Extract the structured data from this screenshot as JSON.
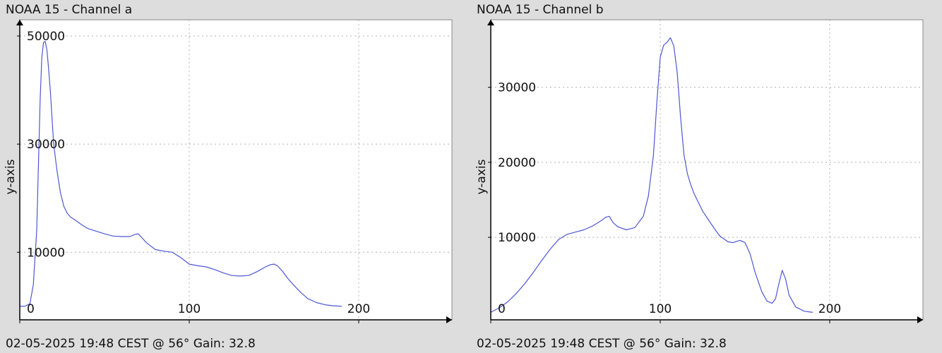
{
  "colors": {
    "background": "#dddddd",
    "plot_background": "#ffffff",
    "line": "#4f57d4",
    "grid": "#b0b0b0",
    "axis": "#000000"
  },
  "chart_data": [
    {
      "type": "line",
      "title": "NOAA 15 - Channel a",
      "footer": "02-05-2025 19:48 CEST @ 56° Gain: 32.8",
      "xlabel": "",
      "ylabel": "y-axis",
      "xlim": [
        0,
        255
      ],
      "ylim": [
        -2500,
        53000
      ],
      "x_ticks": [
        0,
        100,
        200
      ],
      "y_ticks": [
        10000,
        30000,
        50000
      ],
      "grid": true,
      "series": [
        {
          "x": [
            0,
            3,
            6,
            8,
            10,
            11,
            12,
            13,
            14,
            15,
            16,
            17,
            18,
            19,
            20,
            22,
            24,
            26,
            28,
            30,
            33,
            36,
            40,
            45,
            50,
            55,
            60,
            65,
            68,
            70,
            72,
            75,
            80,
            85,
            90,
            95,
            100,
            105,
            110,
            115,
            120,
            125,
            130,
            135,
            140,
            145,
            148,
            150,
            152,
            155,
            158,
            162,
            166,
            170,
            175,
            180,
            185,
            190
          ],
          "y": [
            0,
            0,
            500,
            4000,
            14000,
            26000,
            38000,
            46000,
            48800,
            49000,
            47500,
            44000,
            40000,
            35000,
            30000,
            25000,
            21000,
            18500,
            17200,
            16500,
            15900,
            15200,
            14400,
            13900,
            13400,
            13000,
            12900,
            12900,
            13300,
            13400,
            12700,
            11700,
            10500,
            10200,
            10000,
            9000,
            7800,
            7500,
            7300,
            6800,
            6200,
            5700,
            5600,
            5700,
            6400,
            7300,
            7700,
            7800,
            7500,
            6500,
            5200,
            3800,
            2500,
            1400,
            700,
            300,
            100,
            0
          ]
        }
      ]
    },
    {
      "type": "line",
      "title": "NOAA 15 - Channel b",
      "footer": "02-05-2025 19:48 CEST @ 56° Gain: 32.8",
      "xlabel": "",
      "ylabel": "y-axis",
      "xlim": [
        0,
        255
      ],
      "ylim": [
        -1000,
        39000
      ],
      "x_ticks": [
        0,
        100,
        200
      ],
      "y_ticks": [
        10000,
        20000,
        30000
      ],
      "grid": true,
      "series": [
        {
          "x": [
            0,
            5,
            10,
            15,
            20,
            25,
            30,
            35,
            40,
            45,
            50,
            55,
            60,
            65,
            68,
            70,
            72,
            75,
            80,
            85,
            90,
            93,
            96,
            98,
            100,
            102,
            104,
            106,
            108,
            110,
            112,
            114,
            116,
            118,
            120,
            125,
            130,
            135,
            140,
            143,
            147,
            150,
            153,
            156,
            160,
            163,
            166,
            168,
            170,
            172,
            174,
            176,
            180,
            185,
            190
          ],
          "y": [
            0,
            600,
            1400,
            2500,
            3800,
            5300,
            6900,
            8400,
            9700,
            10400,
            10700,
            11000,
            11500,
            12200,
            12700,
            12800,
            12000,
            11400,
            11000,
            11300,
            12800,
            15500,
            21000,
            28000,
            34000,
            35600,
            36000,
            36600,
            35500,
            32000,
            26000,
            21000,
            18500,
            17000,
            15800,
            13500,
            11800,
            10200,
            9400,
            9300,
            9600,
            9300,
            7800,
            5300,
            2700,
            1500,
            1200,
            1800,
            3800,
            5600,
            4400,
            2300,
            700,
            150,
            0
          ]
        }
      ]
    }
  ]
}
